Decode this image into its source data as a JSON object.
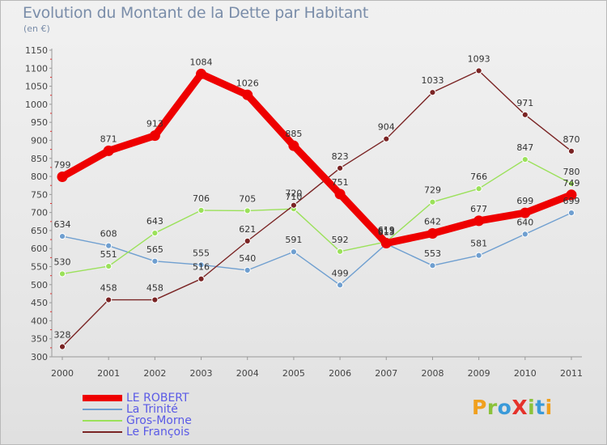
{
  "title": "Evolution du Montant de la Dette par Habitant",
  "unit_label": "(en €)",
  "brand": {
    "text": "ProXiti",
    "letters": [
      {
        "ch": "P",
        "color": "#f0a01e"
      },
      {
        "ch": "r",
        "color": "#8bc23b"
      },
      {
        "ch": "o",
        "color": "#3a9ad9"
      },
      {
        "ch": "X",
        "color": "#e5322b"
      },
      {
        "ch": "i",
        "color": "#8bc23b"
      },
      {
        "ch": "t",
        "color": "#3a9ad9"
      },
      {
        "ch": "i",
        "color": "#f0a01e"
      }
    ]
  },
  "chart_data": {
    "type": "line",
    "title": "Evolution du Montant de la Dette par Habitant",
    "ylabel": "(en €)",
    "xlabel": "",
    "x": [
      "2000",
      "2001",
      "2002",
      "2003",
      "2004",
      "2005",
      "2006",
      "2007",
      "2008",
      "2009",
      "2010",
      "2011"
    ],
    "ylim": [
      300,
      1150
    ],
    "yticks": [
      300,
      350,
      400,
      450,
      500,
      550,
      600,
      650,
      700,
      750,
      800,
      850,
      900,
      950,
      1000,
      1050,
      1100,
      1150
    ],
    "grid": false,
    "legend_position": "bottom-left",
    "series": [
      {
        "name": "LE ROBERT",
        "color": "#ee0000",
        "emphasis": true,
        "values": [
          799,
          871,
          913,
          1084,
          1026,
          885,
          751,
          615,
          642,
          677,
          699,
          749
        ]
      },
      {
        "name": "La Trinité",
        "color": "#6f9fd0",
        "emphasis": false,
        "values": [
          634,
          608,
          565,
          555,
          540,
          591,
          499,
          613,
          553,
          581,
          640,
          699
        ]
      },
      {
        "name": "Gros-Morne",
        "color": "#9be15a",
        "emphasis": false,
        "values": [
          530,
          551,
          643,
          706,
          705,
          710,
          592,
          619,
          729,
          766,
          847,
          780
        ]
      },
      {
        "name": "Le François",
        "color": "#7a2424",
        "emphasis": false,
        "values": [
          328,
          458,
          458,
          516,
          621,
          720,
          823,
          904,
          1033,
          1093,
          971,
          870
        ]
      }
    ]
  }
}
